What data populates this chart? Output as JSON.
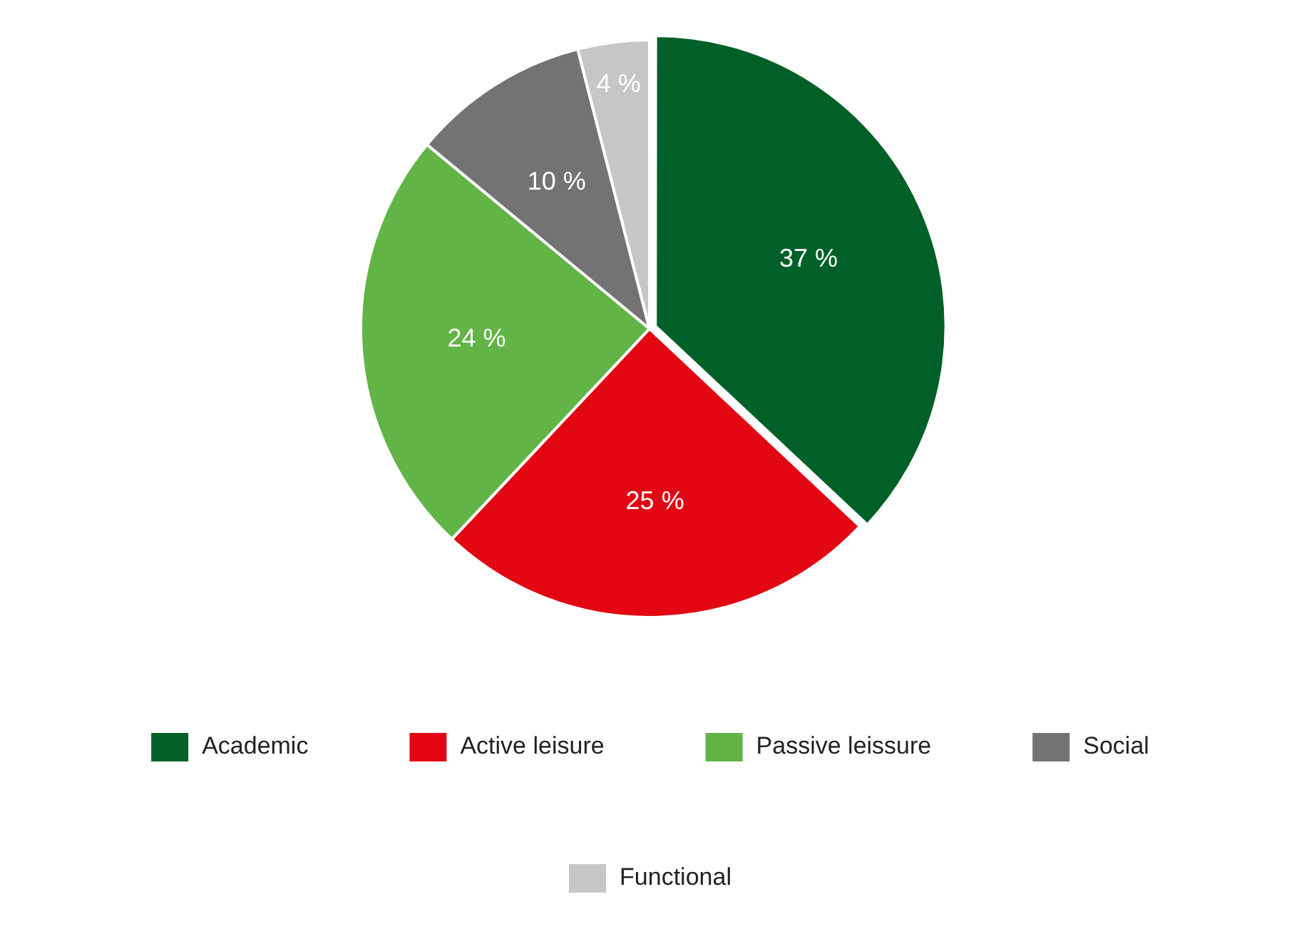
{
  "chart_data": {
    "type": "pie",
    "categories": [
      "Academic",
      "Active leisure",
      "Passive leissure",
      "Social",
      "Functional"
    ],
    "values": [
      37,
      25,
      24,
      10,
      4
    ],
    "colors": [
      "#006028",
      "#e30613",
      "#62b446",
      "#737373",
      "#c6c6c6"
    ],
    "value_labels": [
      "37 %",
      "25 %",
      "24 %",
      "10 %",
      "4 %"
    ],
    "legend": "bottom"
  }
}
